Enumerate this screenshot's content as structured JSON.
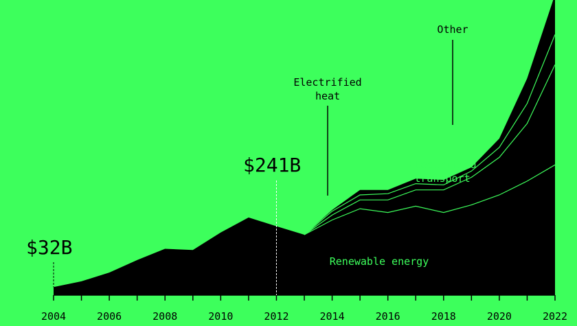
{
  "colors": {
    "background": "#3dff5c",
    "area_fill": "#000000",
    "divider_line": "#3dff5c",
    "label_on_dark": "#3dff5c",
    "text": "#000000"
  },
  "chart_data": {
    "type": "area",
    "stacked": true,
    "x": [
      2004,
      2005,
      2006,
      2007,
      2008,
      2009,
      2010,
      2011,
      2012,
      2013,
      2014,
      2015,
      2016,
      2017,
      2018,
      2019,
      2020,
      2021,
      2022
    ],
    "x_ticks": [
      "2004",
      "2006",
      "2008",
      "2010",
      "2012",
      "2014",
      "2016",
      "2018",
      "2020",
      "2022"
    ],
    "series": [
      {
        "name": "Renewable energy",
        "values": [
          32,
          55,
          90,
          140,
          185,
          180,
          250,
          310,
          275,
          241,
          300,
          345,
          330,
          355,
          330,
          360,
          400,
          455,
          520
        ]
      },
      {
        "name": "Electrified transport",
        "values": [
          0,
          0,
          0,
          0,
          0,
          0,
          0,
          0,
          0,
          0,
          20,
          35,
          50,
          65,
          90,
          110,
          150,
          230,
          400
        ]
      },
      {
        "name": "Electrified heat",
        "values": [
          0,
          0,
          0,
          0,
          0,
          0,
          0,
          0,
          0,
          0,
          15,
          20,
          25,
          25,
          20,
          25,
          40,
          80,
          120
        ]
      },
      {
        "name": "Other",
        "values": [
          0,
          0,
          0,
          0,
          0,
          0,
          0,
          0,
          0,
          0,
          5,
          20,
          15,
          20,
          20,
          15,
          35,
          100,
          160
        ]
      }
    ],
    "ylim": [
      0,
      1200
    ],
    "annotations": [
      {
        "text": "$32B",
        "x": 2004
      },
      {
        "text": "$241B",
        "x": 2012
      }
    ],
    "grid": false,
    "legend": "inline labels"
  }
}
